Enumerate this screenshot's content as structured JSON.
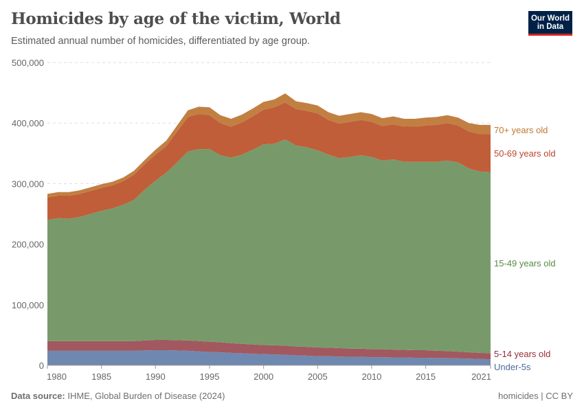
{
  "header": {
    "title": "Homicides by age of the victim, World",
    "subtitle": "Estimated annual number of homicides, differentiated by age group.",
    "logo": "Our World in Data"
  },
  "footer": {
    "source_label": "Data source:",
    "source": "IHME, Global Burden of Disease (2024)",
    "license": "homicides | CC BY"
  },
  "chart_data": {
    "type": "area",
    "stacked": true,
    "grid": "horizontal dashed",
    "legend": "inline-right",
    "ylim": [
      0,
      500000
    ],
    "yticks": [
      "0",
      "100,000",
      "200,000",
      "300,000",
      "400,000",
      "500,000"
    ],
    "yticks_values": [
      0,
      100000,
      200000,
      300000,
      400000,
      500000
    ],
    "xticks": [
      "1980",
      "1985",
      "1990",
      "1995",
      "2000",
      "2005",
      "2010",
      "2015",
      "2021"
    ],
    "xticks_values": [
      1980,
      1985,
      1990,
      1995,
      2000,
      2005,
      2010,
      2015,
      2021
    ],
    "x": [
      1980,
      1981,
      1982,
      1983,
      1984,
      1985,
      1986,
      1987,
      1988,
      1989,
      1990,
      1991,
      1992,
      1993,
      1994,
      1995,
      1996,
      1997,
      1998,
      1999,
      2000,
      2001,
      2002,
      2003,
      2004,
      2005,
      2006,
      2007,
      2008,
      2009,
      2010,
      2011,
      2012,
      2013,
      2014,
      2015,
      2016,
      2017,
      2018,
      2019,
      2020,
      2021
    ],
    "series": [
      {
        "name": "Under-5s",
        "color": "#6f88b0",
        "label_color": "#4c6a9c",
        "values": [
          24000,
          24000,
          24000,
          24000,
          24000,
          24000,
          24000,
          24000,
          24000,
          24500,
          25000,
          25000,
          24500,
          24000,
          23000,
          22000,
          21500,
          20500,
          20000,
          19000,
          18500,
          18000,
          17500,
          16500,
          16000,
          15000,
          15000,
          14500,
          14000,
          14000,
          13500,
          13500,
          13000,
          13000,
          12500,
          12500,
          12000,
          12000,
          11500,
          11000,
          10500,
          10000
        ]
      },
      {
        "name": "5-14 years old",
        "color": "#a2585f",
        "label_color": "#962c3a",
        "values": [
          16000,
          16000,
          16000,
          16000,
          16000,
          16000,
          16000,
          16000,
          16000,
          16500,
          17000,
          17000,
          17000,
          17000,
          17000,
          17000,
          16500,
          16000,
          15500,
          15500,
          15000,
          15000,
          15000,
          14500,
          14500,
          14500,
          14000,
          14000,
          13500,
          13500,
          13000,
          13000,
          13000,
          12500,
          12500,
          12500,
          12000,
          11500,
          11000,
          10500,
          10000,
          10000
        ]
      },
      {
        "name": "15-49 years old",
        "color": "#789a6a",
        "label_color": "#578a44",
        "values": [
          200000,
          203000,
          202000,
          205000,
          210000,
          215000,
          219000,
          225000,
          233000,
          249000,
          263000,
          276000,
          293500,
          312000,
          317000,
          318000,
          309000,
          306500,
          312500,
          321500,
          331500,
          333000,
          340500,
          332000,
          329500,
          325500,
          319000,
          313500,
          316500,
          319500,
          317500,
          311500,
          314000,
          310500,
          311000,
          311000,
          312000,
          314500,
          312500,
          303500,
          299500,
          299000
        ]
      },
      {
        "name": "50-69 years old",
        "color": "#c05e39",
        "label_color": "#b8462a",
        "values": [
          37000,
          37000,
          38000,
          38000,
          38000,
          38000,
          38000,
          39000,
          41500,
          42000,
          43000,
          44000,
          51000,
          57000,
          58000,
          56000,
          53000,
          51000,
          53000,
          55000,
          57000,
          60000,
          61000,
          60000,
          60000,
          61000,
          57000,
          57000,
          58000,
          58000,
          58000,
          57000,
          58000,
          58000,
          58000,
          60000,
          61000,
          62000,
          61000,
          61000,
          62000,
          63000
        ]
      },
      {
        "name": "70+ years old",
        "color": "#c27f42",
        "label_color": "#c0782f",
        "values": [
          6000,
          6000,
          6000,
          6000,
          6000,
          6000,
          6000,
          6000,
          6500,
          7000,
          8000,
          9000,
          10000,
          11000,
          12000,
          13000,
          13000,
          13000,
          13000,
          13000,
          13000,
          13000,
          15000,
          13000,
          13000,
          13000,
          13000,
          13000,
          13000,
          13000,
          13000,
          13000,
          13000,
          13000,
          13000,
          13000,
          13000,
          13000,
          13000,
          14000,
          15000,
          15000
        ]
      }
    ]
  }
}
